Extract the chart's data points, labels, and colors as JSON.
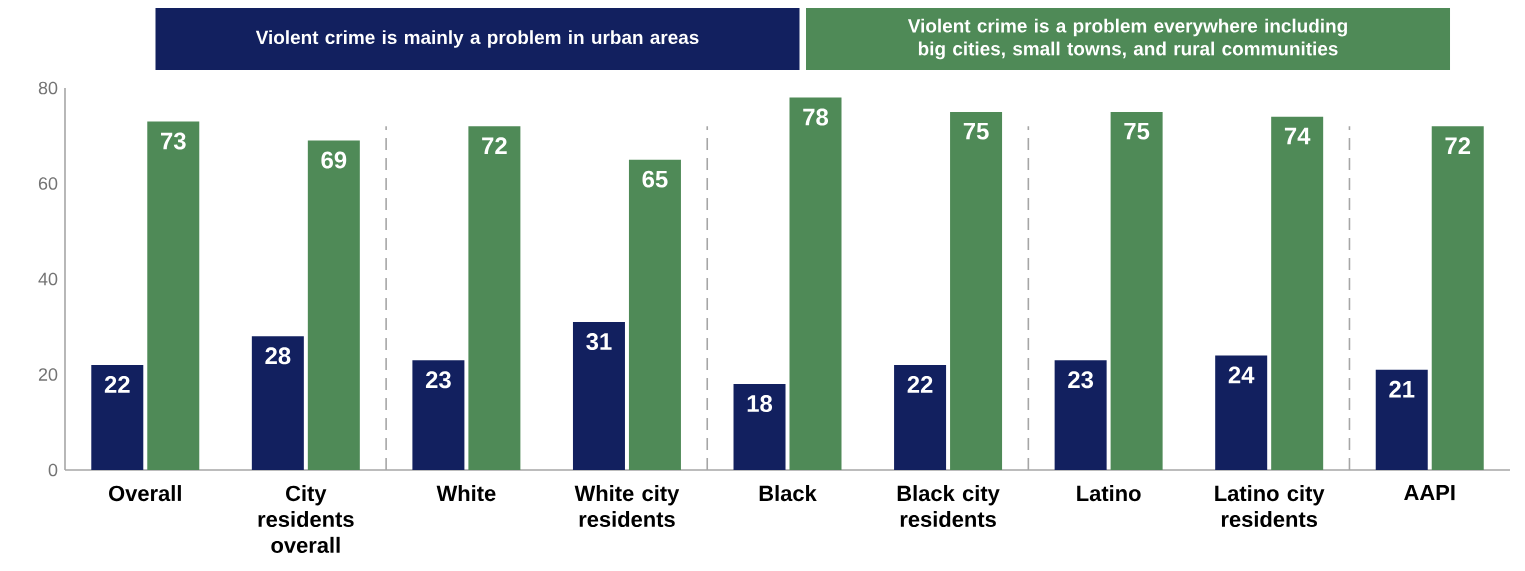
{
  "chart_data": {
    "type": "bar",
    "categories": [
      "Overall",
      "City residents overall",
      "White",
      "White city residents",
      "Black",
      "Black city residents",
      "Latino",
      "Latino city residents",
      "AAPI"
    ],
    "series": [
      {
        "name": "Violent crime is mainly a problem in urban areas",
        "color": "#12205f",
        "values": [
          22,
          28,
          23,
          31,
          18,
          22,
          23,
          24,
          21
        ]
      },
      {
        "name": "Violent crime is a problem everywhere including big cities, small towns, and rural communities",
        "color": "#4f8a57",
        "values": [
          73,
          69,
          72,
          65,
          78,
          75,
          75,
          74,
          72
        ]
      }
    ],
    "ylim": [
      0,
      80
    ],
    "yticks": [
      0,
      20,
      40,
      60,
      80
    ],
    "grid": false,
    "legend": "top",
    "data_labels": true
  }
}
